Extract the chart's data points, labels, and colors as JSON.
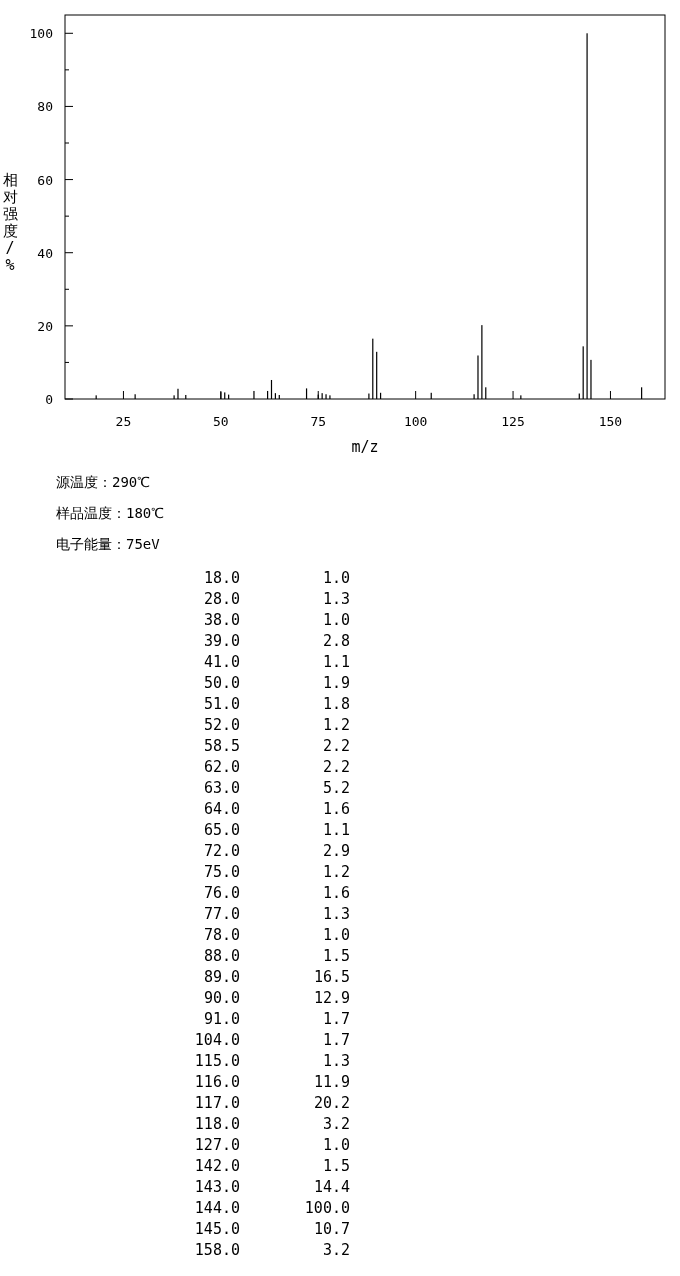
{
  "chart_data": [
    {
      "type": "bar",
      "xlabel": "m/z",
      "ylabel": "相对强度/%",
      "color": "#000000",
      "x": [
        18.0,
        28.0,
        38.0,
        39.0,
        41.0,
        50.0,
        51.0,
        52.0,
        58.5,
        62.0,
        63.0,
        64.0,
        65.0,
        72.0,
        75.0,
        76.0,
        77.0,
        78.0,
        88.0,
        89.0,
        90.0,
        91.0,
        104.0,
        115.0,
        116.0,
        117.0,
        118.0,
        127.0,
        142.0,
        143.0,
        144.0,
        145.0,
        158.0
      ],
      "values": [
        1.0,
        1.3,
        1.0,
        2.8,
        1.1,
        1.9,
        1.8,
        1.2,
        2.2,
        2.2,
        5.2,
        1.6,
        1.1,
        2.9,
        1.2,
        1.6,
        1.3,
        1.0,
        1.5,
        16.5,
        12.9,
        1.7,
        1.7,
        1.3,
        11.9,
        20.2,
        3.2,
        1.0,
        1.5,
        14.4,
        100.0,
        10.7,
        3.2
      ],
      "xlim": [
        10,
        164
      ],
      "ylim": [
        0,
        105
      ],
      "xticks": [
        25,
        50,
        75,
        100,
        125,
        150
      ],
      "yticks": [
        0,
        {
          "value": 10,
          "label": null
        },
        20,
        {
          "value": 30,
          "label": null
        },
        40,
        {
          "value": 50,
          "label": null
        },
        60,
        {
          "value": 70,
          "label": null
        },
        80,
        {
          "value": 90,
          "label": null
        },
        100
      ],
      "grid": false,
      "annotations": [
        "源温度：290℃",
        "样品温度：180℃",
        "电子能量：75eV"
      ]
    },
    {
      "type": "other",
      "annotations": [
        "18.0",
        "1.0",
        "28.0",
        "1.3",
        "38.0",
        "1.0",
        "39.0",
        "2.8",
        "41.0",
        "1.1",
        "50.0",
        "1.9",
        "51.0",
        "1.8",
        "52.0",
        "1.2",
        "58.5",
        "2.2",
        "62.0",
        "2.2",
        "63.0",
        "5.2",
        "64.0",
        "1.6",
        "65.0",
        "1.1",
        "72.0",
        "2.9",
        "75.0",
        "1.2",
        "76.0",
        "1.6",
        "77.0",
        "1.3",
        "78.0",
        "1.0",
        "88.0",
        "1.5",
        "89.0",
        "16.5",
        "90.0",
        "12.9",
        "91.0",
        "1.7",
        "104.0",
        "1.7",
        "115.0",
        "1.3",
        "116.0",
        "11.9",
        "117.0",
        "20.2",
        "118.0",
        "3.2",
        "127.0",
        "1.0",
        "142.0",
        "1.5",
        "143.0",
        "14.4",
        "144.0",
        "100.0",
        "145.0",
        "10.7",
        "158.0",
        "3.2"
      ]
    }
  ]
}
